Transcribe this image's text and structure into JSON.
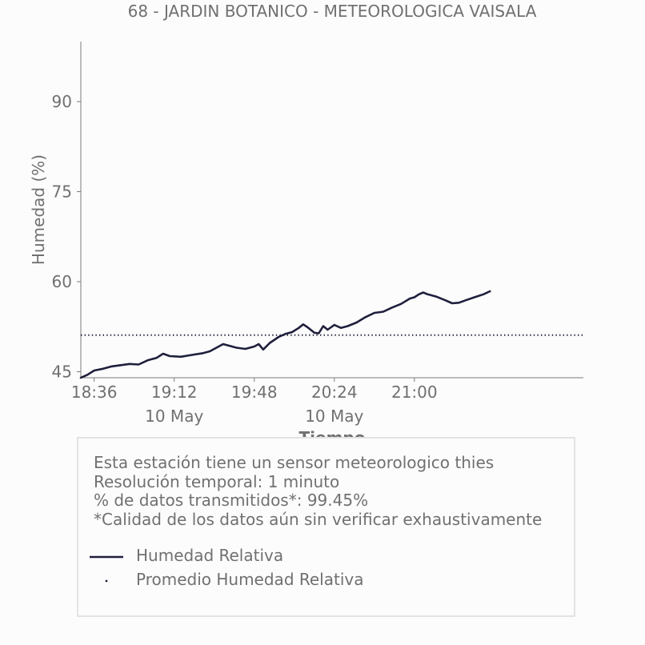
{
  "chart_data": {
    "type": "line",
    "title": "68 - JARDIN BOTANICO - METEOROLOGICA VAISALA",
    "xlabel": "Tiempo",
    "ylabel": "Humedad (%)",
    "x_range": [
      "18:30",
      "22:16"
    ],
    "ylim": [
      44,
      100
    ],
    "y_ticks": [
      45,
      60,
      75,
      90
    ],
    "x_ticks": [
      {
        "time": "18:36",
        "label": "18:36",
        "sublabel": ""
      },
      {
        "time": "19:12",
        "label": "19:12",
        "sublabel": "10 May"
      },
      {
        "time": "19:48",
        "label": "19:48",
        "sublabel": ""
      },
      {
        "time": "20:24",
        "label": "20:24",
        "sublabel": "10 May"
      },
      {
        "time": "21:00",
        "label": "21:00",
        "sublabel": ""
      }
    ],
    "grid": false,
    "series": [
      {
        "name": "Humedad Relativa",
        "style": "solid",
        "color": "#1f1f3d",
        "points": [
          [
            "18:30",
            44.0
          ],
          [
            "18:33",
            44.5
          ],
          [
            "18:36",
            45.2
          ],
          [
            "18:40",
            45.5
          ],
          [
            "18:44",
            45.9
          ],
          [
            "18:48",
            46.1
          ],
          [
            "18:52",
            46.3
          ],
          [
            "18:56",
            46.2
          ],
          [
            "19:00",
            46.9
          ],
          [
            "19:04",
            47.3
          ],
          [
            "19:07",
            48.0
          ],
          [
            "19:10",
            47.6
          ],
          [
            "19:15",
            47.5
          ],
          [
            "19:20",
            47.8
          ],
          [
            "19:25",
            48.1
          ],
          [
            "19:28",
            48.4
          ],
          [
            "19:31",
            49.0
          ],
          [
            "19:34",
            49.6
          ],
          [
            "19:37",
            49.3
          ],
          [
            "19:40",
            49.0
          ],
          [
            "19:44",
            48.8
          ],
          [
            "19:48",
            49.2
          ],
          [
            "19:50",
            49.6
          ],
          [
            "19:52",
            48.7
          ],
          [
            "19:55",
            49.8
          ],
          [
            "19:59",
            50.8
          ],
          [
            "20:02",
            51.3
          ],
          [
            "20:05",
            51.6
          ],
          [
            "20:08",
            52.3
          ],
          [
            "20:10",
            52.9
          ],
          [
            "20:12",
            52.4
          ],
          [
            "20:15",
            51.5
          ],
          [
            "20:17",
            51.4
          ],
          [
            "20:19",
            52.6
          ],
          [
            "20:21",
            52.0
          ],
          [
            "20:24",
            52.8
          ],
          [
            "20:27",
            52.3
          ],
          [
            "20:30",
            52.6
          ],
          [
            "20:34",
            53.2
          ],
          [
            "20:38",
            54.1
          ],
          [
            "20:42",
            54.8
          ],
          [
            "20:46",
            55.0
          ],
          [
            "20:50",
            55.7
          ],
          [
            "20:54",
            56.3
          ],
          [
            "20:58",
            57.2
          ],
          [
            "21:00",
            57.4
          ],
          [
            "21:02",
            57.9
          ],
          [
            "21:04",
            58.2
          ],
          [
            "21:06",
            57.9
          ],
          [
            "21:10",
            57.5
          ],
          [
            "21:14",
            56.9
          ],
          [
            "21:17",
            56.4
          ],
          [
            "21:20",
            56.5
          ],
          [
            "21:23",
            56.9
          ],
          [
            "21:27",
            57.4
          ],
          [
            "21:31",
            57.9
          ],
          [
            "21:34",
            58.4
          ]
        ]
      },
      {
        "name": "Promedio Humedad Relativa",
        "style": "dotted",
        "color": "#1f1f3d",
        "constant": 51.1
      }
    ]
  },
  "info": {
    "lines": [
      "Esta estación tiene un sensor meteorologico thies",
      "Resolución temporal: 1 minuto",
      "% de datos transmitidos*: 99.45%",
      "*Calidad de los datos aún sin verificar exhaustivamente"
    ]
  },
  "legend": {
    "items": [
      {
        "label": "Humedad Relativa",
        "style": "solid"
      },
      {
        "label": "Promedio Humedad Relativa",
        "style": "dotted"
      }
    ]
  }
}
